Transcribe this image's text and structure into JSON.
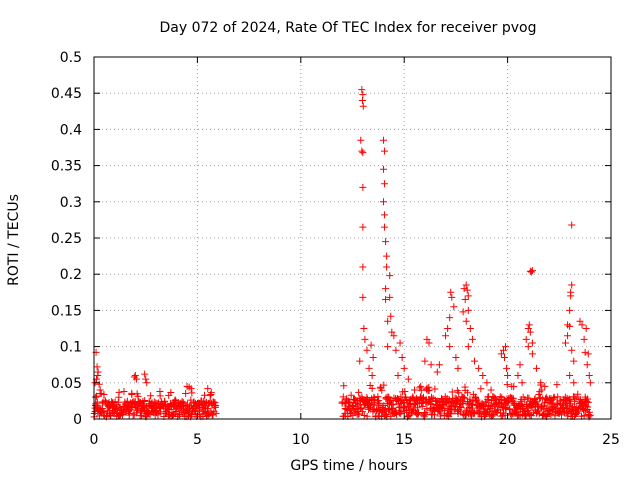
{
  "chart_data": {
    "type": "scatter",
    "title": "Day 072 of 2024, Rate Of TEC Index for receiver pvog",
    "xlabel": "GPS time / hours",
    "ylabel": "ROTI / TECUs",
    "xlim": [
      0,
      25
    ],
    "ylim": [
      0,
      0.5
    ],
    "xticks": [
      0,
      5,
      10,
      15,
      20,
      25
    ],
    "yticks": [
      0,
      0.05,
      0.1,
      0.15,
      0.2,
      0.25,
      0.3,
      0.35,
      0.4,
      0.45,
      0.5
    ],
    "grid": true,
    "marker": "+",
    "color": "#ff0000",
    "series": [
      {
        "name": "ROTI",
        "points": [
          [
            0.1,
            0.092
          ],
          [
            0.15,
            0.072
          ],
          [
            0.2,
            0.065
          ],
          [
            0.12,
            0.055
          ],
          [
            0.25,
            0.048
          ],
          [
            0.3,
            0.04
          ],
          [
            0.05,
            0.05
          ],
          [
            0.35,
            0.035
          ],
          [
            0.18,
            0.06
          ],
          [
            0.08,
            0.03
          ],
          [
            1.95,
            0.058
          ],
          [
            2.0,
            0.06
          ],
          [
            2.05,
            0.055
          ],
          [
            2.45,
            0.062
          ],
          [
            2.5,
            0.055
          ],
          [
            2.55,
            0.05
          ],
          [
            4.5,
            0.045
          ],
          [
            4.6,
            0.044
          ],
          [
            4.7,
            0.042
          ],
          [
            5.5,
            0.042
          ],
          [
            1.2,
            0.03
          ],
          [
            3.2,
            0.032
          ],
          [
            12.95,
            0.455
          ],
          [
            13.0,
            0.448
          ],
          [
            12.98,
            0.44
          ],
          [
            13.02,
            0.432
          ],
          [
            12.9,
            0.385
          ],
          [
            12.95,
            0.37
          ],
          [
            13.0,
            0.368
          ],
          [
            13.0,
            0.32
          ],
          [
            13.0,
            0.265
          ],
          [
            13.0,
            0.21
          ],
          [
            13.0,
            0.168
          ],
          [
            13.05,
            0.125
          ],
          [
            13.1,
            0.11
          ],
          [
            13.2,
            0.095
          ],
          [
            12.85,
            0.08
          ],
          [
            13.3,
            0.07
          ],
          [
            13.4,
            0.102
          ],
          [
            13.5,
            0.085
          ],
          [
            13.45,
            0.06
          ],
          [
            14.0,
            0.385
          ],
          [
            14.05,
            0.37
          ],
          [
            14.0,
            0.345
          ],
          [
            14.05,
            0.325
          ],
          [
            14.0,
            0.3
          ],
          [
            14.05,
            0.282
          ],
          [
            14.05,
            0.265
          ],
          [
            14.1,
            0.245
          ],
          [
            14.15,
            0.225
          ],
          [
            14.15,
            0.21
          ],
          [
            14.1,
            0.18
          ],
          [
            14.3,
            0.198
          ],
          [
            14.1,
            0.165
          ],
          [
            14.3,
            0.168
          ],
          [
            14.2,
            0.135
          ],
          [
            14.35,
            0.142
          ],
          [
            14.4,
            0.12
          ],
          [
            14.5,
            0.115
          ],
          [
            14.2,
            0.1
          ],
          [
            14.6,
            0.095
          ],
          [
            14.8,
            0.105
          ],
          [
            14.9,
            0.085
          ],
          [
            15.0,
            0.07
          ],
          [
            14.7,
            0.06
          ],
          [
            15.2,
            0.055
          ],
          [
            15.5,
            0.04
          ],
          [
            15.8,
            0.045
          ],
          [
            16.1,
            0.11
          ],
          [
            16.2,
            0.105
          ],
          [
            16.0,
            0.08
          ],
          [
            16.3,
            0.075
          ],
          [
            16.6,
            0.065
          ],
          [
            16.7,
            0.075
          ],
          [
            17.0,
            0.115
          ],
          [
            17.1,
            0.125
          ],
          [
            17.2,
            0.14
          ],
          [
            17.25,
            0.175
          ],
          [
            17.3,
            0.168
          ],
          [
            17.4,
            0.155
          ],
          [
            17.2,
            0.1
          ],
          [
            17.5,
            0.085
          ],
          [
            17.6,
            0.07
          ],
          [
            17.9,
            0.18
          ],
          [
            18.0,
            0.185
          ],
          [
            18.05,
            0.178
          ],
          [
            18.1,
            0.17
          ],
          [
            17.95,
            0.165
          ],
          [
            18.1,
            0.15
          ],
          [
            17.85,
            0.148
          ],
          [
            18.0,
            0.135
          ],
          [
            18.2,
            0.125
          ],
          [
            18.3,
            0.11
          ],
          [
            18.1,
            0.1
          ],
          [
            18.4,
            0.08
          ],
          [
            18.6,
            0.07
          ],
          [
            18.8,
            0.06
          ],
          [
            19.0,
            0.05
          ],
          [
            19.2,
            0.04
          ],
          [
            19.7,
            0.09
          ],
          [
            19.8,
            0.095
          ],
          [
            19.9,
            0.1
          ],
          [
            19.85,
            0.085
          ],
          [
            19.95,
            0.07
          ],
          [
            20.0,
            0.06
          ],
          [
            20.2,
            0.045
          ],
          [
            20.5,
            0.06
          ],
          [
            20.6,
            0.075
          ],
          [
            20.7,
            0.05
          ],
          [
            20.9,
            0.11
          ],
          [
            21.0,
            0.125
          ],
          [
            21.05,
            0.13
          ],
          [
            21.1,
            0.12
          ],
          [
            21.0,
            0.1
          ],
          [
            21.2,
            0.105
          ],
          [
            21.2,
            0.09
          ],
          [
            21.1,
            0.204
          ],
          [
            21.2,
            0.205
          ],
          [
            21.15,
            0.203
          ],
          [
            21.4,
            0.07
          ],
          [
            21.6,
            0.05
          ],
          [
            21.8,
            0.045
          ],
          [
            22.8,
            0.105
          ],
          [
            22.9,
            0.115
          ],
          [
            22.9,
            0.13
          ],
          [
            23.0,
            0.15
          ],
          [
            23.05,
            0.175
          ],
          [
            23.1,
            0.185
          ],
          [
            23.05,
            0.17
          ],
          [
            23.0,
            0.128
          ],
          [
            23.1,
            0.095
          ],
          [
            23.2,
            0.08
          ],
          [
            23.0,
            0.06
          ],
          [
            23.2,
            0.05
          ],
          [
            23.1,
            0.268
          ],
          [
            23.5,
            0.135
          ],
          [
            23.6,
            0.13
          ],
          [
            23.7,
            0.11
          ],
          [
            23.75,
            0.092
          ],
          [
            23.8,
            0.125
          ],
          [
            23.9,
            0.09
          ],
          [
            23.85,
            0.075
          ],
          [
            23.95,
            0.06
          ],
          [
            24.0,
            0.05
          ]
        ]
      }
    ]
  }
}
